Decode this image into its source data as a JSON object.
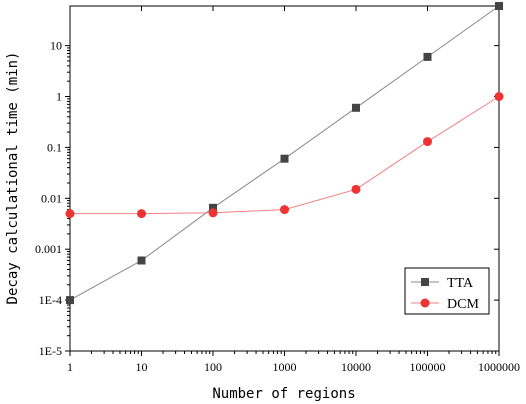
{
  "chart_data": {
    "type": "line",
    "x_scale": "log",
    "y_scale": "log",
    "xlabel": "Number of regions",
    "ylabel": "Decay calculational time (min)",
    "xlim": [
      1,
      1000000
    ],
    "ylim": [
      1e-05,
      60
    ],
    "x_ticks": [
      1,
      10,
      100,
      1000,
      10000,
      100000,
      1000000
    ],
    "x_tick_labels": [
      "1",
      "10",
      "100",
      "1000",
      "10000",
      "100000",
      "1000000"
    ],
    "y_ticks": [
      1e-05,
      0.0001,
      0.001,
      0.01,
      0.1,
      1,
      10
    ],
    "y_tick_labels": [
      "1E-5",
      "1E-4",
      "0.001",
      "0.01",
      "0.1",
      "1",
      "10"
    ],
    "x": [
      1,
      10,
      100,
      1000,
      10000,
      100000,
      1000000
    ],
    "series": [
      {
        "name": "TTA",
        "marker": "square",
        "color": "#444444",
        "line_color": "#888888",
        "values": [
          0.0001,
          0.0006,
          0.0065,
          0.06,
          0.6,
          6,
          60
        ]
      },
      {
        "name": "DCM",
        "marker": "circle",
        "color": "#ee3333",
        "line_color": "#f08080",
        "values": [
          0.005,
          0.005,
          0.0052,
          0.006,
          0.015,
          0.13,
          1.0
        ]
      }
    ],
    "legend_position": "bottom-right",
    "grid": false
  }
}
